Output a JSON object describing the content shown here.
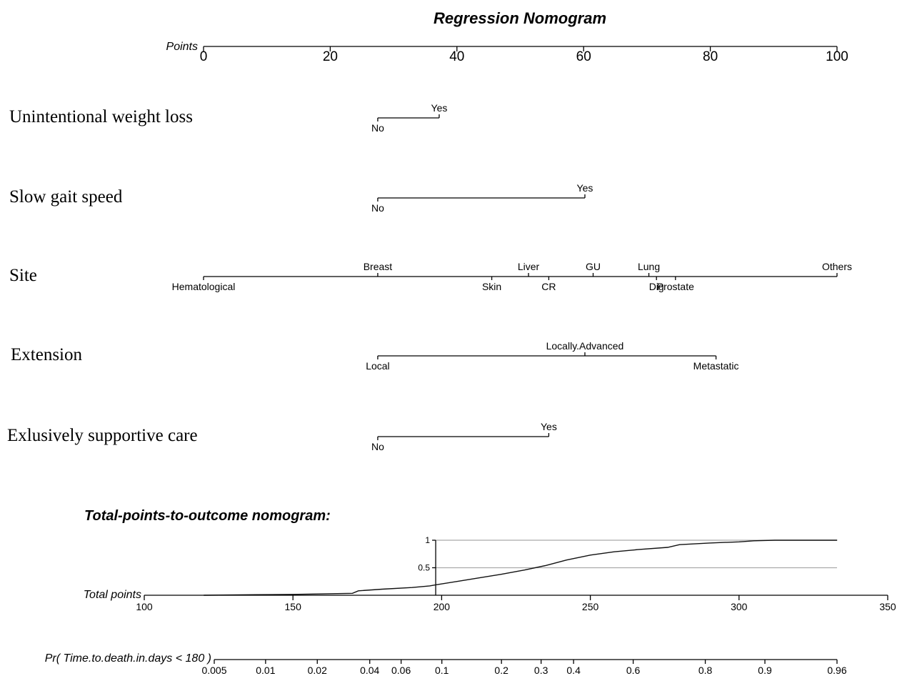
{
  "chart_data": {
    "type": "nomogram",
    "title": "Regression Nomogram",
    "points_axis": {
      "label": "Points",
      "range": [
        0,
        100
      ],
      "ticks": [
        0,
        20,
        40,
        60,
        80,
        100
      ]
    },
    "variables": [
      {
        "name": "Unintentional weight loss",
        "levels": [
          {
            "label": "No",
            "points": 27.5,
            "label_pos": "below"
          },
          {
            "label": "Yes",
            "points": 37.2,
            "label_pos": "above"
          }
        ]
      },
      {
        "name": "Slow gait speed",
        "levels": [
          {
            "label": "No",
            "points": 27.5,
            "label_pos": "below"
          },
          {
            "label": "Yes",
            "points": 60.2,
            "label_pos": "above"
          }
        ]
      },
      {
        "name": "Site",
        "levels": [
          {
            "label": "Hematological",
            "points": 0,
            "label_pos": "below"
          },
          {
            "label": "Breast",
            "points": 27.5,
            "label_pos": "above"
          },
          {
            "label": "Skin",
            "points": 45.5,
            "label_pos": "below"
          },
          {
            "label": "Liver",
            "points": 51.3,
            "label_pos": "above"
          },
          {
            "label": "CR",
            "points": 54.5,
            "label_pos": "below"
          },
          {
            "label": "GU",
            "points": 61.5,
            "label_pos": "above"
          },
          {
            "label": "Lung",
            "points": 70.3,
            "label_pos": "above"
          },
          {
            "label": "Dig",
            "points": 71.5,
            "label_pos": "below"
          },
          {
            "label": "Prostate",
            "points": 74.5,
            "label_pos": "below"
          },
          {
            "label": "Others",
            "points": 100,
            "label_pos": "above"
          }
        ]
      },
      {
        "name": "Extension",
        "levels": [
          {
            "label": "Local",
            "points": 27.5,
            "label_pos": "below"
          },
          {
            "label": "Locally.Advanced",
            "points": 60.2,
            "label_pos": "above"
          },
          {
            "label": "Metastatic",
            "points": 80.9,
            "label_pos": "below"
          }
        ]
      },
      {
        "name": "Exlusively supportive care",
        "levels": [
          {
            "label": "No",
            "points": 27.5,
            "label_pos": "below"
          },
          {
            "label": "Yes",
            "points": 54.5,
            "label_pos": "above"
          }
        ]
      }
    ],
    "outcome_section_title": "Total-points-to-outcome nomogram:",
    "total_points_axis": {
      "label": "Total points",
      "range": [
        100,
        350
      ],
      "ticks": [
        100,
        150,
        200,
        250,
        300,
        350
      ]
    },
    "probability_axis": {
      "label": "Pr( Time.to.death.in.days < 180 )",
      "scale": "logit",
      "ticks": [
        {
          "label": "0.005",
          "value": 0.005
        },
        {
          "label": "0.01",
          "value": 0.01
        },
        {
          "label": "0.02",
          "value": 0.02
        },
        {
          "label": "0.04",
          "value": 0.04
        },
        {
          "label": "0.06",
          "value": 0.06
        },
        {
          "label": "0.1",
          "value": 0.1
        },
        {
          "label": "0.2",
          "value": 0.2
        },
        {
          "label": "0.3",
          "value": 0.3
        },
        {
          "label": "0.4",
          "value": 0.4
        },
        {
          "label": "0.6",
          "value": 0.6
        },
        {
          "label": "0.8",
          "value": 0.8
        },
        {
          "label": "0.9",
          "value": 0.9
        },
        {
          "label": "0.96",
          "value": 0.96
        }
      ]
    },
    "inset_curve": {
      "ylim": [
        0,
        1
      ],
      "y_ticks": [
        "1",
        "0.5"
      ],
      "grid_lines_at": [
        1,
        0.5
      ],
      "vertical_line_at_total_points": 198,
      "points": [
        [
          120,
          0.0
        ],
        [
          138,
          0.01
        ],
        [
          150,
          0.015
        ],
        [
          165,
          0.03
        ],
        [
          170,
          0.035
        ],
        [
          172,
          0.08
        ],
        [
          180,
          0.11
        ],
        [
          190,
          0.14
        ],
        [
          196,
          0.17
        ],
        [
          198,
          0.19
        ],
        [
          205,
          0.25
        ],
        [
          212,
          0.31
        ],
        [
          220,
          0.38
        ],
        [
          228,
          0.46
        ],
        [
          235,
          0.54
        ],
        [
          242,
          0.64
        ],
        [
          250,
          0.73
        ],
        [
          258,
          0.79
        ],
        [
          266,
          0.83
        ],
        [
          276,
          0.87
        ],
        [
          280,
          0.92
        ],
        [
          290,
          0.95
        ],
        [
          300,
          0.97
        ],
        [
          305,
          0.99
        ],
        [
          312,
          1.0
        ],
        [
          333,
          1.0
        ]
      ]
    }
  }
}
